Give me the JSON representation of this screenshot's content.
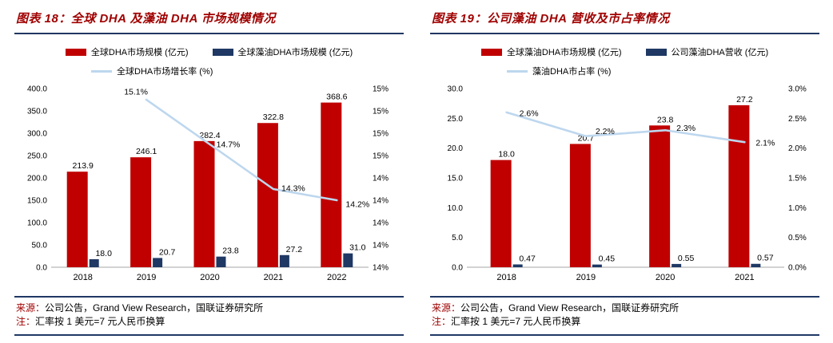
{
  "colors": {
    "title_red": "#A00000",
    "rule_navy": "#1F3864",
    "bar_red": "#C00000",
    "bar_navy": "#1F3864",
    "line_light_blue": "#BDD7EE",
    "axis_gray": "#A6A6A6"
  },
  "panels": [
    {
      "title": "图表 18：全球 DHA 及藻油 DHA 市场规模情况",
      "source_label": "来源：",
      "source_text": "公司公告，Grand View Research，国联证券研究所",
      "note_label": "注：",
      "note_text": "汇率按 1 美元=7 元人民币换算"
    },
    {
      "title": "图表 19：公司藻油 DHA 营收及市占率情况",
      "source_label": "来源：",
      "source_text": "公司公告，Grand View Research，国联证券研究所",
      "note_label": "注：",
      "note_text": "汇率按 1 美元=7 元人民币换算"
    }
  ],
  "chart_data": [
    {
      "type": "bar",
      "title": "图表 18：全球 DHA 及藻油 DHA 市场规模情况",
      "categories": [
        "2018",
        "2019",
        "2020",
        "2021",
        "2022"
      ],
      "series": [
        {
          "name": "全球DHA市场规模 (亿元)",
          "kind": "bar",
          "axis": "left",
          "color": "#C00000",
          "values": [
            213.9,
            246.1,
            282.4,
            322.8,
            368.6
          ],
          "value_labels": [
            "213.9",
            "246.1",
            "282.4",
            "322.8",
            "368.6"
          ]
        },
        {
          "name": "全球藻油DHA市场规模 (亿元)",
          "kind": "bar",
          "axis": "left",
          "color": "#1F3864",
          "values": [
            18.0,
            20.7,
            23.8,
            27.2,
            31.0
          ],
          "value_labels": [
            "18.0",
            "20.7",
            "23.8",
            "27.2",
            "31.0"
          ]
        },
        {
          "name": "全球DHA市场增长率 (%)",
          "kind": "line",
          "axis": "right",
          "color": "#BDD7EE",
          "values": [
            null,
            15.1,
            14.7,
            14.3,
            14.2
          ],
          "value_labels": [
            null,
            "15.1%",
            "14.7%",
            "14.3%",
            "14.2%"
          ],
          "label_offsets": [
            null,
            [
              -13,
              -10
            ],
            [
              23,
              0
            ],
            [
              25,
              -1
            ],
            [
              26,
              5
            ]
          ]
        }
      ],
      "left_axis": {
        "min": 0,
        "max": 400,
        "tick_labels": [
          "0.0",
          "50.0",
          "100.0",
          "150.0",
          "200.0",
          "250.0",
          "300.0",
          "350.0",
          "400.0"
        ]
      },
      "right_axis": {
        "min": 13.6,
        "max": 15.2,
        "tick_labels": [
          "14%",
          "14%",
          "14%",
          "14%",
          "14%",
          "15%",
          "15%",
          "15%",
          "15%"
        ]
      },
      "grid": false,
      "legend_position": "top"
    },
    {
      "type": "bar",
      "title": "图表 19：公司藻油 DHA 营收及市占率情况",
      "categories": [
        "2018",
        "2019",
        "2020",
        "2021"
      ],
      "series": [
        {
          "name": "全球藻油DHA市场规模 (亿元)",
          "kind": "bar",
          "axis": "left",
          "color": "#C00000",
          "values": [
            18.0,
            20.7,
            23.8,
            27.2
          ],
          "value_labels": [
            "18.0",
            "20.7",
            "23.8",
            "27.2"
          ]
        },
        {
          "name": "公司藻油DHA营收 (亿元)",
          "kind": "bar",
          "axis": "left",
          "color": "#1F3864",
          "values": [
            0.47,
            0.45,
            0.55,
            0.57
          ],
          "value_labels": [
            "0.47",
            "0.45",
            "0.55",
            "0.57"
          ]
        },
        {
          "name": "藻油DHA市占率 (%)",
          "kind": "line",
          "axis": "right",
          "color": "#BDD7EE",
          "values": [
            2.6,
            2.2,
            2.3,
            2.1
          ],
          "value_labels": [
            "2.6%",
            "2.2%",
            "2.3%",
            "2.1%"
          ],
          "label_offsets": [
            [
              28,
              1
            ],
            [
              24,
              -6
            ],
            [
              26,
              -3
            ],
            [
              26,
              1
            ]
          ]
        }
      ],
      "left_axis": {
        "min": 0,
        "max": 30,
        "tick_labels": [
          "0.0",
          "5.0",
          "10.0",
          "15.0",
          "20.0",
          "25.0",
          "30.0"
        ]
      },
      "right_axis": {
        "min": 0,
        "max": 3,
        "tick_labels": [
          "0.0%",
          "0.5%",
          "1.0%",
          "1.5%",
          "2.0%",
          "2.5%",
          "3.0%"
        ]
      },
      "grid": false,
      "legend_position": "top"
    }
  ]
}
